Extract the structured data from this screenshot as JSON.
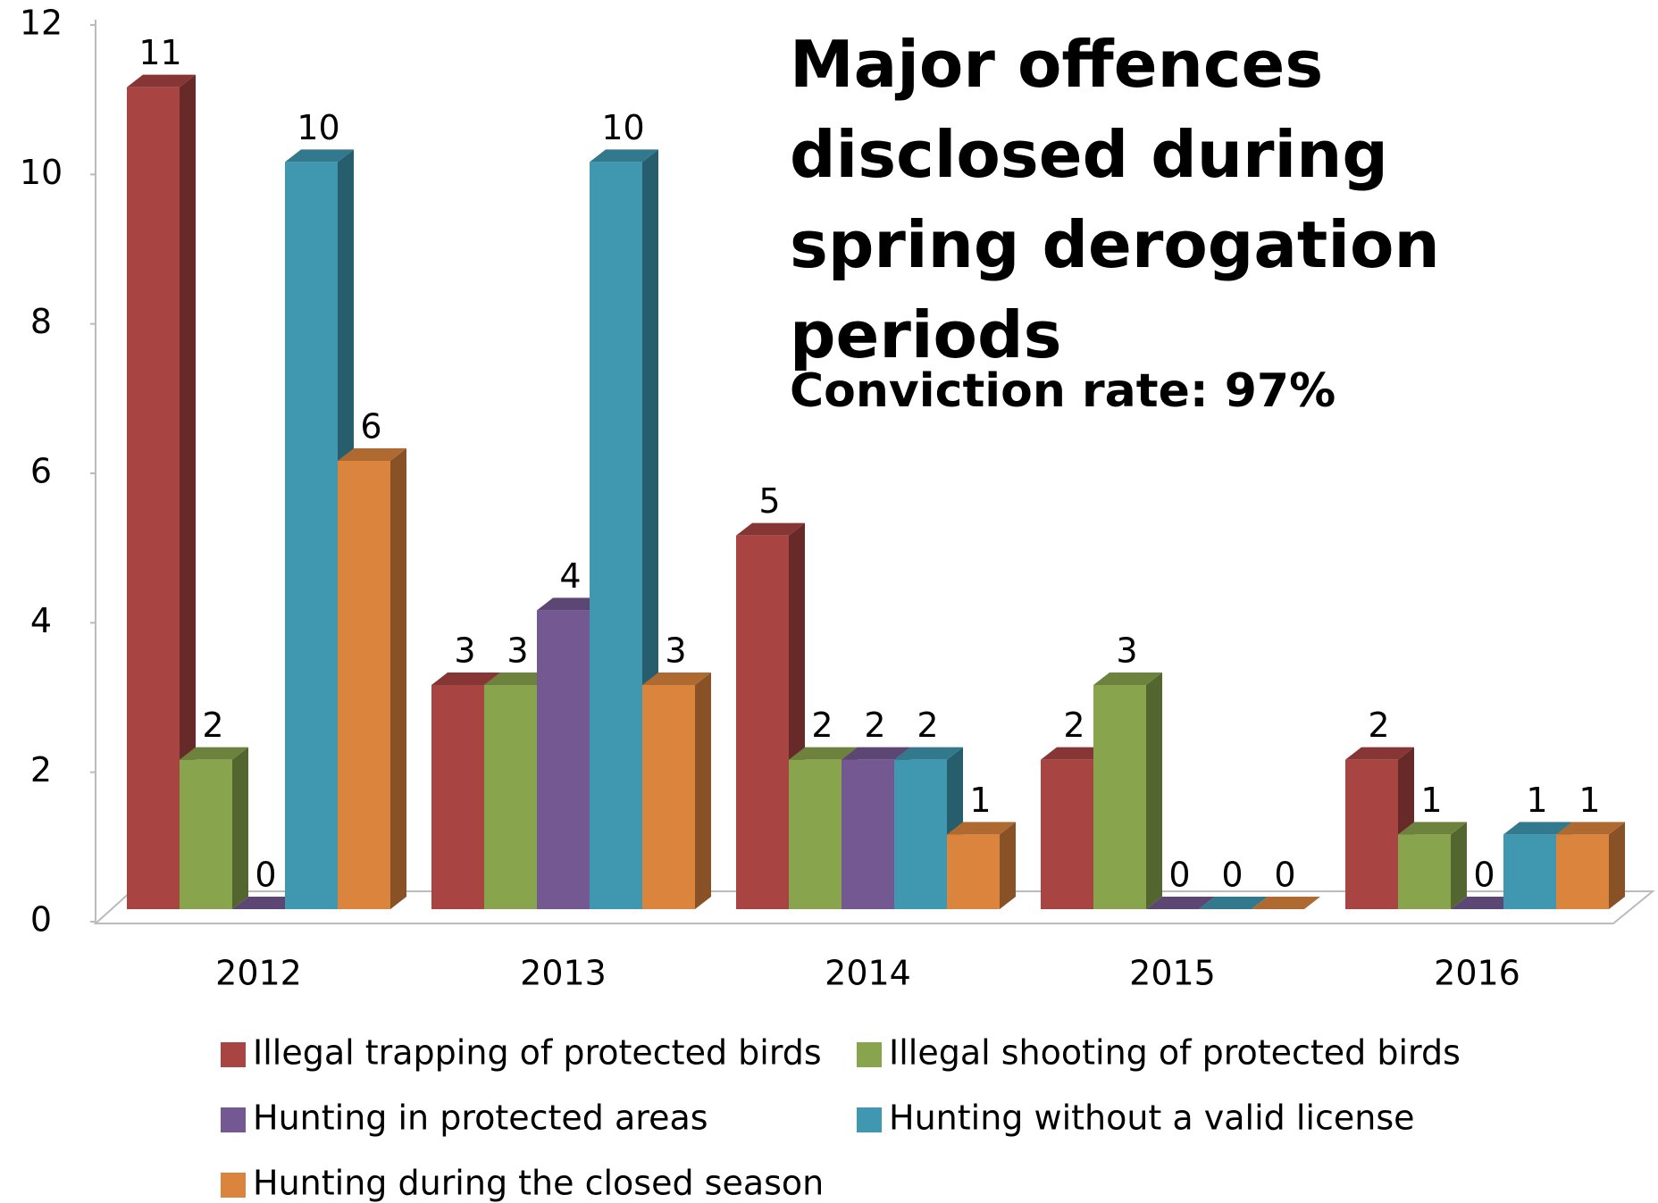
{
  "chart_data": {
    "type": "bar3d",
    "title": "Major offences disclosed during spring derogation periods",
    "annotation": "Conviction rate: 97%",
    "categories": [
      "2012",
      "2013",
      "2014",
      "2015",
      "2016"
    ],
    "series": [
      {
        "name": "Illegal trapping of protected birds",
        "color": "#a84442",
        "values": [
          11,
          3,
          5,
          2,
          2
        ]
      },
      {
        "name": "Illegal shooting of protected birds",
        "color": "#88a44c",
        "values": [
          2,
          3,
          2,
          3,
          1
        ]
      },
      {
        "name": "Hunting in protected areas",
        "color": "#735891",
        "values": [
          0,
          4,
          2,
          0,
          0
        ]
      },
      {
        "name": "Hunting without a valid license",
        "color": "#3f97b0",
        "values": [
          10,
          10,
          2,
          0,
          1
        ]
      },
      {
        "name": "Hunting during the closed season",
        "color": "#db843d",
        "values": [
          6,
          3,
          1,
          0,
          1
        ]
      }
    ],
    "ylim": [
      0,
      12
    ],
    "yticks": [
      0,
      2,
      4,
      6,
      8,
      10,
      12
    ]
  }
}
